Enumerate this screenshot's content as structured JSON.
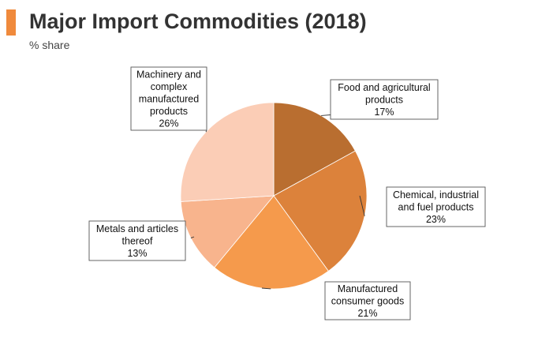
{
  "header": {
    "title": "Major Import Commodities (2018)",
    "subtitle": "% share",
    "accent_color": "#f08a3c"
  },
  "chart_data": {
    "type": "pie",
    "title": "Major Import Commodities (2018)",
    "subtitle": "% share",
    "unit": "%",
    "start": "12 o'clock",
    "direction": "clockwise",
    "slices": [
      {
        "label": [
          "Food and agricultural",
          "products"
        ],
        "pct_text": "17%",
        "value": 17,
        "color": "#b96e30"
      },
      {
        "label": [
          "Chemical, industrial",
          "and fuel products"
        ],
        "pct_text": "23%",
        "value": 23,
        "color": "#dc823b"
      },
      {
        "label": [
          "Manufactured",
          "consumer goods"
        ],
        "pct_text": "21%",
        "value": 21,
        "color": "#f59a4c"
      },
      {
        "label": [
          "Metals and articles",
          "thereof"
        ],
        "pct_text": "13%",
        "value": 13,
        "color": "#f8b48d"
      },
      {
        "label": [
          "Machinery and",
          "complex",
          "manufactured",
          "products"
        ],
        "pct_text": "26%",
        "value": 26,
        "color": "#fbcdb6"
      }
    ]
  }
}
